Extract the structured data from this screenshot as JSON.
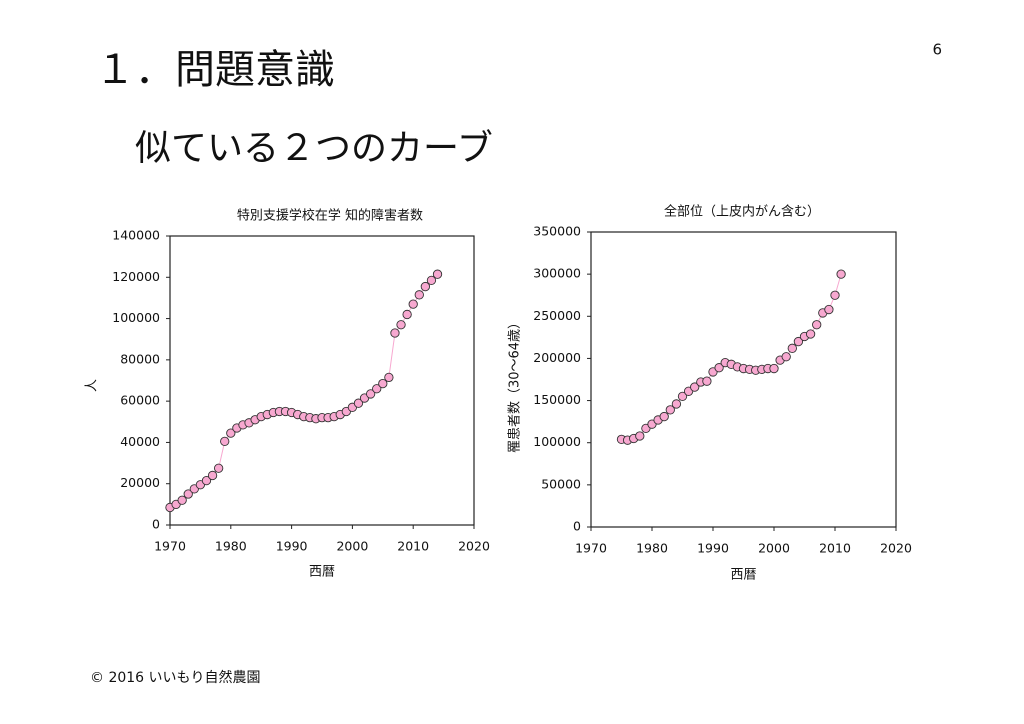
{
  "slide": {
    "title": "１．問題意識",
    "subtitle": "似ている２つのカーブ",
    "page": "6",
    "footer": "© 2016 いいもり自然農園"
  },
  "chart_data": [
    {
      "type": "line",
      "title": "特別支援学校在学 知的障害者数",
      "x_label": "西暦",
      "y_label": "人",
      "color": "#f7a8d0",
      "x": [
        1970,
        1971,
        1972,
        1973,
        1974,
        1975,
        1976,
        1977,
        1978,
        1979,
        1980,
        1981,
        1982,
        1983,
        1984,
        1985,
        1986,
        1987,
        1988,
        1989,
        1990,
        1991,
        1992,
        1993,
        1994,
        1995,
        1996,
        1997,
        1998,
        1999,
        2000,
        2001,
        2002,
        2003,
        2004,
        2005,
        2006,
        2007,
        2008,
        2009,
        2010,
        2011,
        2012,
        2013,
        2014
      ],
      "values": [
        8500,
        10000,
        12000,
        15000,
        17500,
        19500,
        21500,
        24000,
        27500,
        40500,
        44500,
        47000,
        48500,
        49500,
        51000,
        52500,
        53500,
        54500,
        55000,
        55000,
        54500,
        53500,
        52500,
        52000,
        51500,
        52000,
        52000,
        52500,
        53500,
        55000,
        57000,
        59000,
        61500,
        63500,
        66000,
        68500,
        71500,
        93000,
        97000,
        102000,
        107000,
        111500,
        115500,
        118500,
        121500
      ],
      "xlim": [
        1970,
        2020
      ],
      "xticks": [
        1970,
        1980,
        1990,
        2000,
        2010,
        2020
      ],
      "ylim": [
        0,
        140000
      ],
      "yticks": [
        0,
        20000,
        40000,
        60000,
        80000,
        100000,
        120000,
        140000
      ]
    },
    {
      "type": "line",
      "title": "全部位（上皮内がん含む）",
      "x_label": "西暦",
      "y_label": "罹患者数（30〜64歳）",
      "color": "#f7a8d0",
      "x": [
        1975,
        1976,
        1977,
        1978,
        1979,
        1980,
        1981,
        1982,
        1983,
        1984,
        1985,
        1986,
        1987,
        1988,
        1989,
        1990,
        1991,
        1992,
        1993,
        1994,
        1995,
        1996,
        1997,
        1998,
        1999,
        2000,
        2001,
        2002,
        2003,
        2004,
        2005,
        2006,
        2007,
        2008,
        2009,
        2010,
        2011
      ],
      "values": [
        104000,
        103000,
        105000,
        108000,
        117000,
        122000,
        127000,
        131000,
        139000,
        146000,
        155000,
        161000,
        166000,
        172000,
        173000,
        184000,
        189000,
        195000,
        193000,
        190000,
        188000,
        187000,
        186000,
        187000,
        188000,
        188000,
        198000,
        202000,
        212000,
        220000,
        226000,
        229000,
        240000,
        254000,
        258000,
        275000,
        300000
      ],
      "xlim": [
        1970,
        2020
      ],
      "xticks": [
        1970,
        1980,
        1990,
        2000,
        2010,
        2020
      ],
      "ylim": [
        0,
        350000
      ],
      "yticks": [
        0,
        50000,
        100000,
        150000,
        200000,
        250000,
        300000,
        350000
      ]
    }
  ]
}
